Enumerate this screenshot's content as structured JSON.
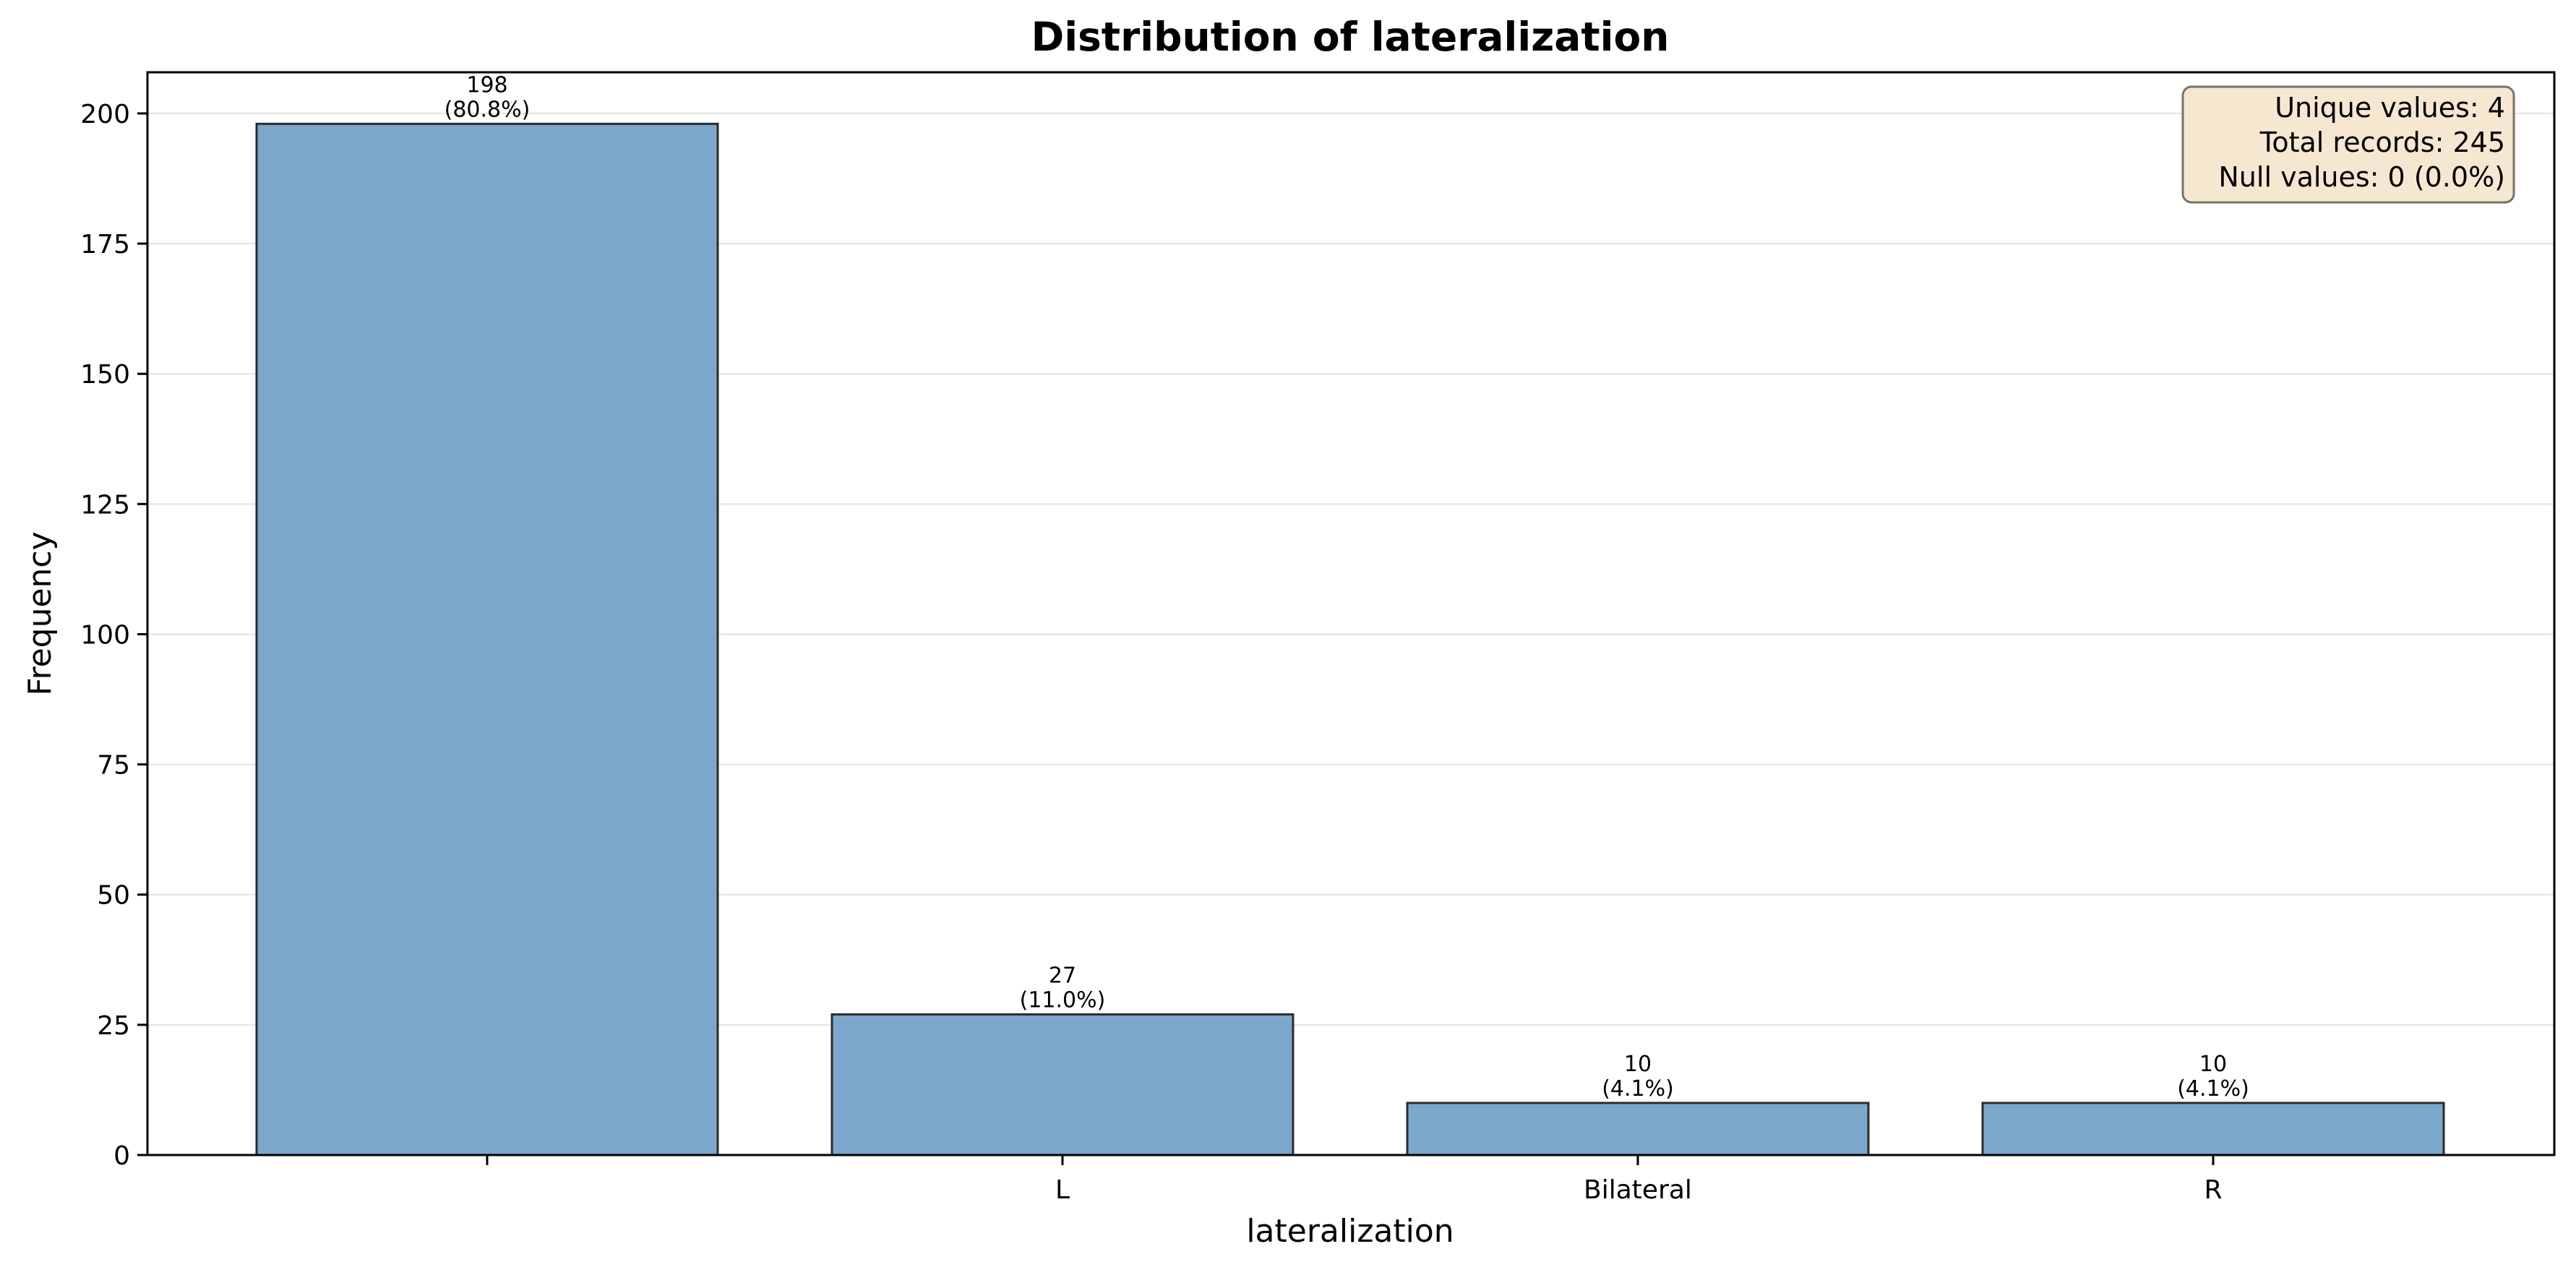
{
  "chart_data": {
    "type": "bar",
    "title": "Distribution of lateralization",
    "xlabel": "lateralization",
    "ylabel": "Frequency",
    "categories": [
      "",
      "L",
      "Bilateral",
      "R"
    ],
    "values": [
      198,
      27,
      10,
      10
    ],
    "percent_labels": [
      "(80.8%)",
      "(11.0%)",
      "(4.1%)",
      "(4.1%)"
    ],
    "ylim": [
      0,
      207.9
    ],
    "yticks": [
      0,
      25,
      50,
      75,
      100,
      125,
      150,
      175,
      200
    ],
    "grid": "y",
    "bar_color": "#7ba7cc",
    "bar_edge_color": "#2b2b2b",
    "stats_box": {
      "placement": "top-right",
      "lines": [
        "Unique values: 4",
        "Total records: 245",
        "Null values: 0 (0.0%)"
      ],
      "background": "#f6e8d0",
      "border": "#7a7066"
    }
  }
}
